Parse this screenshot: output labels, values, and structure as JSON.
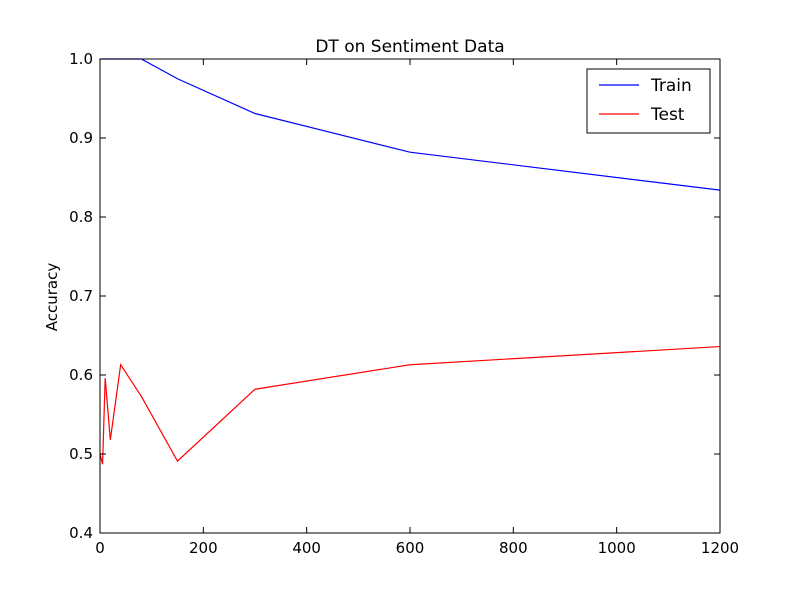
{
  "chart_data": {
    "type": "line",
    "title": "DT on Sentiment Data",
    "xlabel": "",
    "ylabel": "Accuracy",
    "xlim": [
      0,
      1200
    ],
    "ylim": [
      0.4,
      1.0
    ],
    "xticks": [
      0,
      200,
      400,
      600,
      800,
      1000,
      1200
    ],
    "xtick_labels": [
      "0",
      "200",
      "400",
      "600",
      "800",
      "1000",
      "1200"
    ],
    "yticks": [
      0.4,
      0.5,
      0.6,
      0.7,
      0.8,
      0.9,
      1.0
    ],
    "ytick_labels": [
      "0.4",
      "0.5",
      "0.6",
      "0.7",
      "0.8",
      "0.9",
      "1.0"
    ],
    "grid": false,
    "legend_position": "top-right",
    "series": [
      {
        "name": "Train",
        "color": "#0000ff",
        "x": [
          0,
          5,
          10,
          20,
          40,
          80,
          150,
          300,
          600,
          1200
        ],
        "y": [
          1.0,
          1.0,
          1.0,
          1.0,
          1.0,
          1.0,
          0.975,
          0.931,
          0.882,
          0.834
        ]
      },
      {
        "name": "Test",
        "color": "#ff0000",
        "x": [
          0,
          5,
          10,
          20,
          40,
          80,
          150,
          300,
          600,
          1200
        ],
        "y": [
          0.5,
          0.487,
          0.596,
          0.518,
          0.613,
          0.573,
          0.491,
          0.582,
          0.613,
          0.636
        ]
      }
    ]
  }
}
